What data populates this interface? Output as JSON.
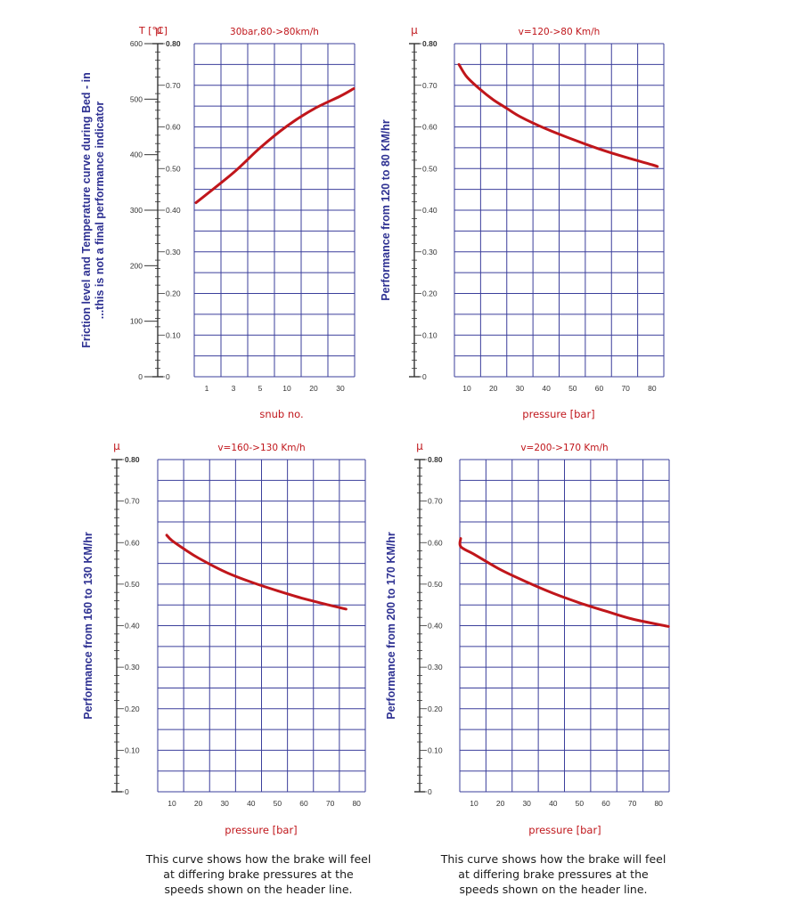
{
  "colors": {
    "grid": "#3b3f9b",
    "axis": "#333333",
    "curve": "#c0161b",
    "accent": "#c0161b",
    "label": "#2e3192"
  },
  "notes": [
    "This curve shows how the brake will feel\nat differing brake pressures at the\nspeeds shown on the header line.",
    "This curve shows how the brake will feel\nat differing brake pressures at the\nspeeds shown on the header line."
  ],
  "chart_data": [
    {
      "type": "line",
      "title": "30bar,80->80km/h",
      "ylabel": "Friction level and Temperature curve during Bed - in\n...this is not a final performance indicator",
      "xlabel": "snub no.",
      "y_unit_label": "μ",
      "secondary_axis_label": "T [°C]",
      "secondary_axis_ticks": [
        "0",
        "100",
        "200",
        "300",
        "400",
        "500",
        "600"
      ],
      "secondary_axis_range": [
        0,
        600
      ],
      "x_tick_labels": [
        "1",
        "3",
        "5",
        "10",
        "20",
        "30"
      ],
      "ylim": [
        0,
        0.8
      ],
      "y_tick_labels": [
        "0",
        "0.10",
        "0.20",
        "0.30",
        "0.40",
        "0.50",
        "0.60",
        "0.70",
        "0.80"
      ],
      "grid": true,
      "series": [
        {
          "x": [
            "1",
            "3",
            "5",
            "10",
            "20",
            "30",
            "35"
          ],
          "values": [
            0.418,
            0.49,
            0.55,
            0.602,
            0.643,
            0.674,
            0.692
          ]
        }
      ]
    },
    {
      "type": "line",
      "title": "v=120->80 Km/h",
      "ylabel": "Performance from 120 to 80 KM/hr",
      "xlabel": "pressure [bar]",
      "y_unit_label": "μ",
      "x_tick_labels": [
        "10",
        "20",
        "30",
        "40",
        "50",
        "60",
        "70",
        "80"
      ],
      "xlim": [
        0,
        85
      ],
      "ylim": [
        0,
        0.8
      ],
      "y_tick_labels": [
        "0",
        "0.10",
        "0.20",
        "0.30",
        "0.40",
        "0.50",
        "0.60",
        "0.70",
        "0.80"
      ],
      "grid": true,
      "series": [
        {
          "x": [
            7,
            10,
            15,
            20,
            25,
            30,
            40,
            50,
            60,
            70,
            80,
            82
          ],
          "values": [
            0.75,
            0.72,
            0.69,
            0.665,
            0.645,
            0.625,
            0.595,
            0.57,
            0.547,
            0.527,
            0.509,
            0.505
          ]
        }
      ]
    },
    {
      "type": "line",
      "title": "v=160->130 Km/h",
      "ylabel": "Performance from 160 to 130 KM/hr",
      "xlabel": "pressure [bar]",
      "y_unit_label": "μ",
      "x_tick_labels": [
        "10",
        "20",
        "30",
        "40",
        "50",
        "60",
        "70",
        "80"
      ],
      "xlim": [
        0,
        80
      ],
      "ylim": [
        0,
        0.8
      ],
      "y_tick_labels": [
        "0",
        "0.10",
        "0.20",
        "0.30",
        "0.40",
        "0.50",
        "0.60",
        "0.70",
        "0.80"
      ],
      "grid": true,
      "series": [
        {
          "x": [
            8,
            10,
            15,
            20,
            30,
            40,
            50,
            60,
            70,
            76
          ],
          "values": [
            0.618,
            0.605,
            0.583,
            0.563,
            0.53,
            0.505,
            0.484,
            0.465,
            0.449,
            0.44
          ]
        }
      ]
    },
    {
      "type": "line",
      "title": "v=200->170 Km/h",
      "ylabel": "Performance from 200 to 170 KM/hr",
      "xlabel": "pressure [bar]",
      "y_unit_label": "μ",
      "x_tick_labels": [
        "10",
        "20",
        "30",
        "40",
        "50",
        "60",
        "70",
        "80"
      ],
      "xlim": [
        0,
        80
      ],
      "ylim": [
        0,
        0.8
      ],
      "y_tick_labels": [
        "0",
        "0.10",
        "0.20",
        "0.30",
        "0.40",
        "0.50",
        "0.60",
        "0.70",
        "0.80"
      ],
      "grid": true,
      "series": [
        {
          "x": [
            0,
            5,
            10,
            20,
            30,
            40,
            50,
            60,
            70,
            80
          ],
          "values": [
            0.61,
            0.59,
            0.572,
            0.535,
            0.505,
            0.478,
            0.455,
            0.435,
            0.416,
            0.398
          ]
        }
      ]
    }
  ]
}
